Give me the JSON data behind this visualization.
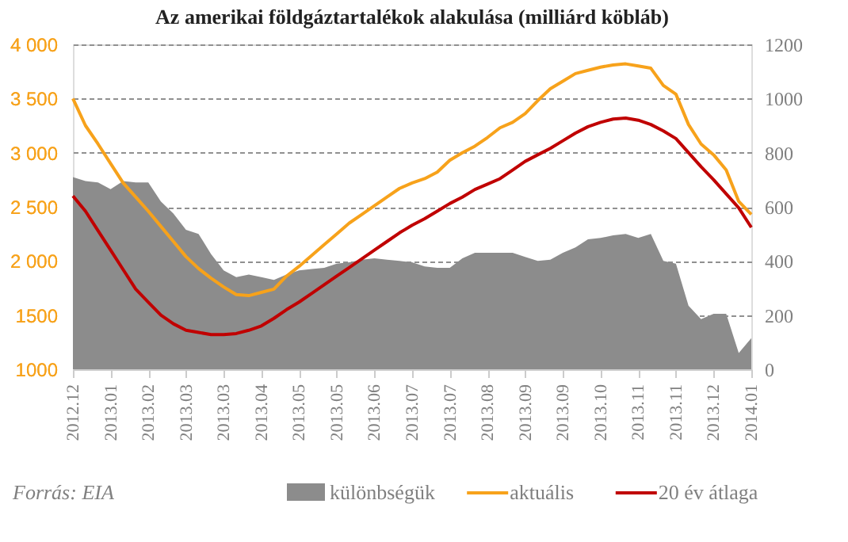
{
  "chart_data": {
    "type": "line",
    "title": "Az amerikai földgáztartalékok alakulása (milliárd köbláb)",
    "categories": [
      "2012.12",
      null,
      null,
      "2013.01",
      null,
      null,
      "2013.02",
      null,
      null,
      "2013.03",
      null,
      null,
      "2013.03",
      null,
      null,
      "2013.04",
      null,
      null,
      "2013.05",
      null,
      null,
      "2013.05",
      null,
      null,
      "2013.06",
      null,
      null,
      "2013.07",
      null,
      null,
      "2013.07",
      null,
      null,
      "2013.08",
      null,
      null,
      "2013.09",
      null,
      null,
      "2013.09",
      null,
      null,
      "2013.10",
      null,
      null,
      "2013.11",
      null,
      null,
      "2013.11",
      null,
      null,
      "2013.12",
      null,
      null,
      "2014.01"
    ],
    "series": [
      {
        "name": "különbségük",
        "type": "area",
        "axis": "y2",
        "color": "#8c8c8c",
        "values": [
          710,
          695,
          690,
          665,
          695,
          690,
          690,
          620,
          575,
          515,
          500,
          425,
          365,
          340,
          350,
          340,
          330,
          350,
          365,
          370,
          375,
          390,
          395,
          405,
          410,
          405,
          400,
          395,
          380,
          375,
          375,
          410,
          430,
          430,
          430,
          430,
          415,
          400,
          405,
          430,
          450,
          480,
          485,
          495,
          500,
          485,
          500,
          400,
          390,
          235,
          185,
          205,
          205,
          60,
          115
        ]
      },
      {
        "name": "aktuális",
        "color": "#f7a21b",
        "values": [
          3500,
          3250,
          3080,
          2900,
          2720,
          2590,
          2460,
          2320,
          2180,
          2040,
          1930,
          1840,
          1760,
          1690,
          1680,
          1710,
          1740,
          1860,
          1950,
          2050,
          2150,
          2250,
          2350,
          2430,
          2510,
          2590,
          2670,
          2720,
          2760,
          2820,
          2930,
          3000,
          3060,
          3140,
          3230,
          3280,
          3360,
          3480,
          3590,
          3660,
          3730,
          3760,
          3790,
          3810,
          3820,
          3800,
          3780,
          3620,
          3540,
          3260,
          3080,
          2980,
          2840,
          2550,
          2430
        ]
      },
      {
        "name": "20 év átlaga",
        "color": "#c00000",
        "values": [
          2600,
          2460,
          2280,
          2100,
          1920,
          1740,
          1620,
          1500,
          1420,
          1360,
          1340,
          1320,
          1320,
          1330,
          1360,
          1400,
          1470,
          1550,
          1620,
          1700,
          1780,
          1860,
          1940,
          2020,
          2100,
          2180,
          2260,
          2330,
          2390,
          2460,
          2530,
          2590,
          2660,
          2710,
          2760,
          2840,
          2920,
          2980,
          3040,
          3110,
          3180,
          3240,
          3280,
          3310,
          3320,
          3300,
          3260,
          3200,
          3130,
          3000,
          2870,
          2750,
          2620,
          2490,
          2310
        ]
      }
    ],
    "ylim": [
      1000,
      4000
    ],
    "yticks": [
      {
        "value": 1000,
        "label": "1000"
      },
      {
        "value": 1500,
        "label": "1500"
      },
      {
        "value": 2000,
        "label": "2 000"
      },
      {
        "value": 2500,
        "label": "2 500"
      },
      {
        "value": 3000,
        "label": "3 000"
      },
      {
        "value": 3500,
        "label": "3 500"
      },
      {
        "value": 4000,
        "label": "4 000"
      }
    ],
    "y2lim": [
      0,
      1200
    ],
    "y2ticks": [
      0,
      200,
      400,
      600,
      800,
      1000,
      1200
    ],
    "grid": "y",
    "legend": "bottom",
    "annotations": [
      "Forrás: EIA"
    ]
  }
}
